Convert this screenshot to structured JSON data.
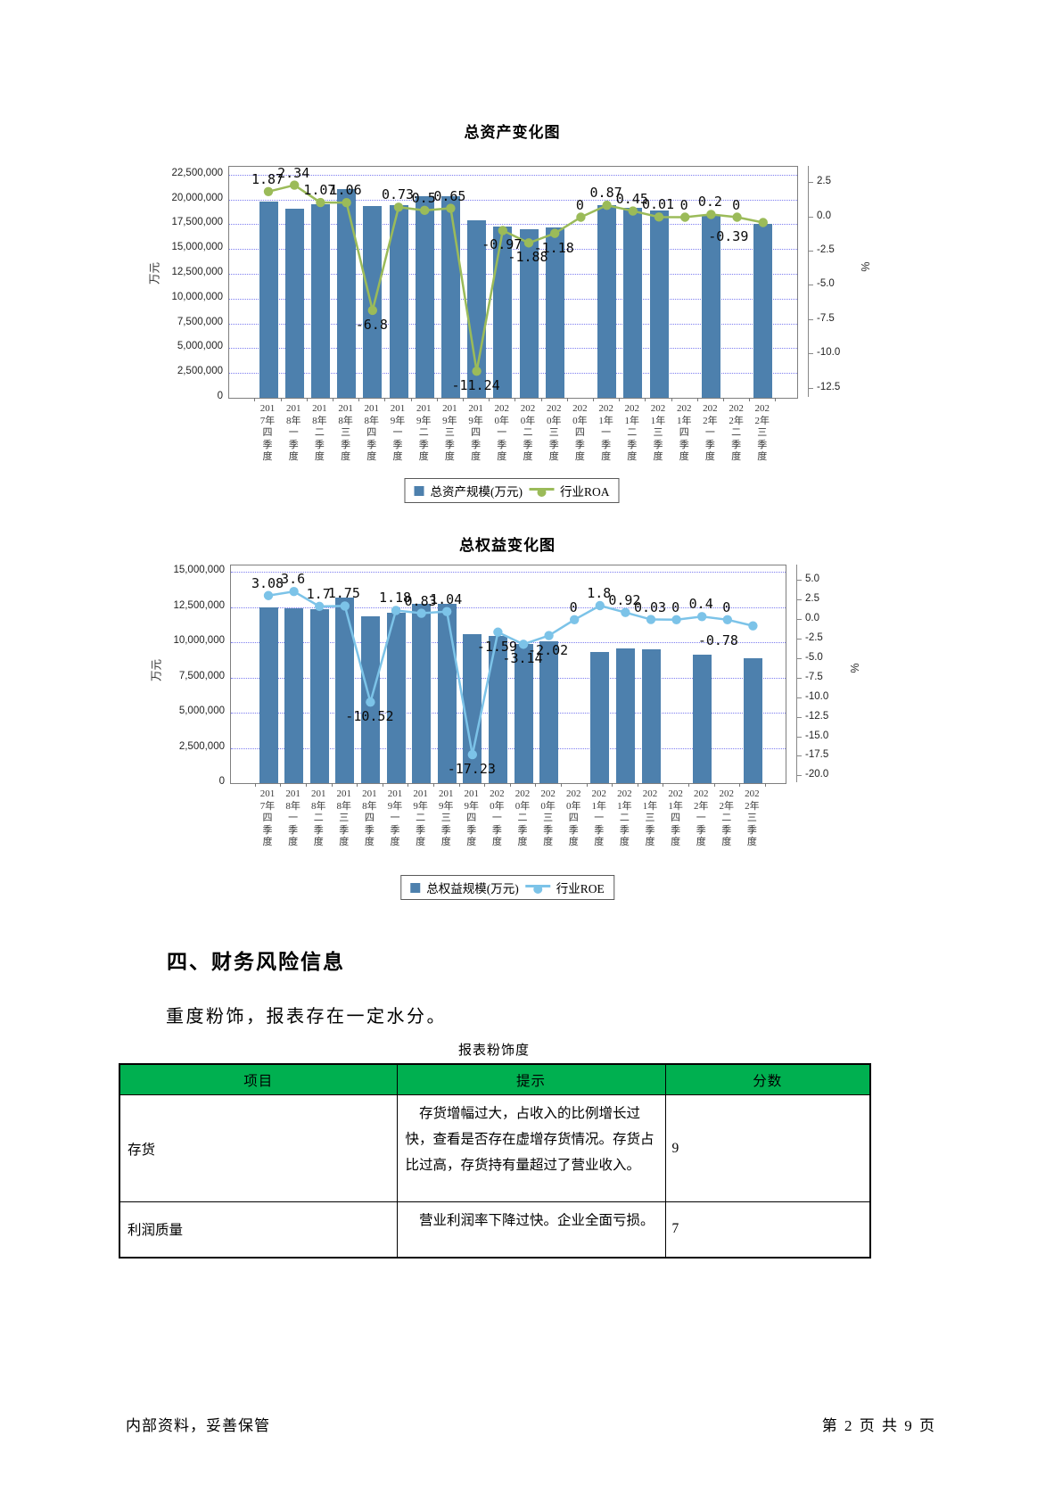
{
  "page": {
    "footer": {
      "left": "内部资料，妥善保管",
      "right": "第 2 页  共 9 页"
    }
  },
  "section4": {
    "heading": "四、财务风险信息",
    "paragraph": "重度粉饰，报表存在一定水分。"
  },
  "table": {
    "title": "报表粉饰度",
    "headers": [
      "项目",
      "提示",
      "分数"
    ],
    "rows": [
      {
        "item": "存货",
        "hint": "存货增幅过大，占收入的比例增长过快，查看是否存在虚增存货情况。存货占比过高，存货持有量超过了营业收入。",
        "score": "9"
      },
      {
        "item": "利润质量",
        "hint": "营业利润率下降过快。企业全面亏损。",
        "score": "7"
      }
    ]
  },
  "colors": {
    "bar": "#4d80ad",
    "roa_line": "#9bbb59",
    "roe_line": "#7cc3e8",
    "grid": "#7d7df0",
    "plot_border": "#7f7f7f",
    "axis_line": "#888888",
    "table_header_bg": "#00b050"
  },
  "chart_data": [
    {
      "type": "bar",
      "title": "总资产变化图",
      "ylabel_left": "万元",
      "ylabel_right": "%",
      "legend_position": "bottom",
      "grid": true,
      "categories": [
        "2017年四季度",
        "2018年一季度",
        "2018年二季度",
        "2018年三季度",
        "2018年四季度",
        "2019年一季度",
        "2019年二季度",
        "2019年三季度",
        "2019年四季度",
        "2020年一季度",
        "2020年二季度",
        "2020年三季度",
        "2020年四季度",
        "2021年一季度",
        "2021年二季度",
        "2021年三季度",
        "2021年四季度",
        "2022年一季度",
        "2022年二季度",
        "2022年三季度"
      ],
      "series": [
        {
          "name": "总资产规模(万元)",
          "type": "bar",
          "axis": "left",
          "values": [
            19800000,
            19100000,
            19550000,
            21050000,
            19300000,
            19400000,
            20350000,
            20300000,
            17900000,
            17250000,
            17000000,
            17150000,
            null,
            19400000,
            19150000,
            18850000,
            null,
            18450000,
            null,
            17550000
          ]
        },
        {
          "name": "行业ROA",
          "type": "line",
          "axis": "right",
          "values": [
            1.87,
            2.34,
            1.07,
            1.06,
            -6.8,
            0.73,
            0.5,
            0.65,
            -11.24,
            -0.97,
            -1.88,
            -1.18,
            0,
            0.87,
            0.45,
            0.01,
            0,
            0.2,
            0,
            -0.39
          ]
        }
      ],
      "left_axis": {
        "min": 0,
        "max": 22500000,
        "step": 2500000,
        "tick_labels": [
          "22,500,000",
          "20,000,000",
          "17,500,000",
          "15,000,000",
          "12,500,000",
          "10,000,000",
          "7,500,000",
          "5,000,000",
          "2,500,000",
          "0"
        ]
      },
      "right_axis": {
        "tick_labels": [
          "2.5",
          "0.0",
          "-2.5",
          "-5.0",
          "-7.5",
          "-10.0",
          "-12.5"
        ]
      }
    },
    {
      "type": "bar",
      "title": "总权益变化图",
      "ylabel_left": "万元",
      "ylabel_right": "%",
      "legend_position": "bottom",
      "grid": true,
      "categories": [
        "2017年四季度",
        "2018年一季度",
        "2018年二季度",
        "2018年三季度",
        "2018年四季度",
        "2019年一季度",
        "2019年二季度",
        "2019年三季度",
        "2019年四季度",
        "2020年一季度",
        "2020年二季度",
        "2020年三季度",
        "2020年四季度",
        "2021年一季度",
        "2021年二季度",
        "2021年三季度",
        "2021年四季度",
        "2022年一季度",
        "2022年二季度",
        "2022年三季度"
      ],
      "series": [
        {
          "name": "总权益规模(万元)",
          "type": "bar",
          "axis": "left",
          "values": [
            12500000,
            12400000,
            12350000,
            13200000,
            11850000,
            12100000,
            12700000,
            12700000,
            10600000,
            10450000,
            9900000,
            10050000,
            null,
            9300000,
            9550000,
            9500000,
            null,
            9100000,
            null,
            8850000
          ]
        },
        {
          "name": "行业ROE",
          "type": "line",
          "axis": "right",
          "values": [
            3.08,
            3.6,
            1.7,
            1.75,
            -10.52,
            1.18,
            0.83,
            1.04,
            -17.23,
            -1.59,
            -3.14,
            -2.02,
            0,
            1.8,
            0.92,
            0.03,
            0,
            0.4,
            0,
            -0.78
          ]
        }
      ],
      "left_axis": {
        "min": 0,
        "max": 15000000,
        "step": 2500000,
        "tick_labels": [
          "15,000,000",
          "12,500,000",
          "10,000,000",
          "7,500,000",
          "5,000,000",
          "2,500,000",
          "0"
        ]
      },
      "right_axis": {
        "tick_labels": [
          "5.0",
          "2.5",
          "0.0",
          "-2.5",
          "-5.0",
          "-7.5",
          "-10.0",
          "-12.5",
          "-15.0",
          "-17.5",
          "-20.0"
        ]
      }
    }
  ]
}
